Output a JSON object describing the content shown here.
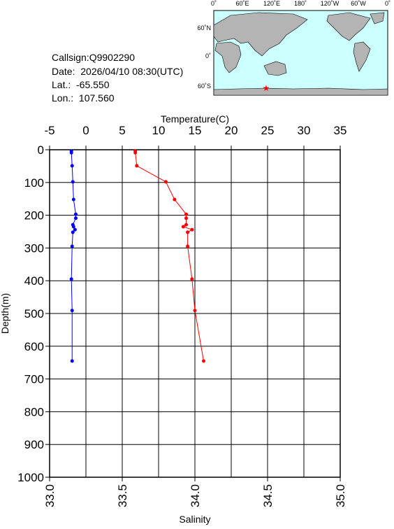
{
  "header": {
    "lines": [
      "Callsign:Q9902290",
      "Date:  2026/04/10 08:30(UTC)",
      "Lat.:  -65.550",
      "Lon.:  107.560"
    ]
  },
  "map": {
    "lon_labels": [
      "0˚",
      "60˚E",
      "120˚E",
      "180˚",
      "120˚W",
      "60˚W",
      "0˚"
    ],
    "lat_labels": [
      "60˚N",
      "0˚",
      "60˚S"
    ]
  },
  "chart_data": {
    "type": "profile",
    "x_label": "Salinity",
    "x2_label": "Temperature(C)",
    "y_label": "Depth(m)",
    "xlim": [
      33,
      35
    ],
    "xticks": [
      {
        "value": 33,
        "label": "33.0"
      },
      {
        "value": 33.5,
        "label": "33.5"
      },
      {
        "value": 34,
        "label": "34.0"
      },
      {
        "value": 34.5,
        "label": "34.5"
      },
      {
        "value": 35,
        "label": "35.0"
      }
    ],
    "x2lim": [
      -5,
      35
    ],
    "x2ticks": [
      -5,
      0,
      5,
      10,
      15,
      20,
      25,
      30,
      35
    ],
    "ylim": [
      0,
      1000
    ],
    "yticks": [
      0,
      100,
      200,
      300,
      400,
      500,
      600,
      700,
      800,
      900,
      1000
    ],
    "y_inverted": true,
    "grid": true,
    "depth": [
      4,
      9,
      49,
      98,
      152,
      197,
      209,
      229,
      235,
      244,
      252,
      295,
      395,
      491,
      645
    ],
    "series": [
      {
        "color": "#0000ff",
        "axis": "x2",
        "values": [
          -2.0,
          -2.0,
          -1.9,
          -1.8,
          -1.7,
          -1.4,
          -1.4,
          -1.8,
          -1.7,
          -1.5,
          -1.8,
          -1.9,
          -2.0,
          -1.9,
          -1.9
        ]
      },
      {
        "color": "#ff0000",
        "axis": "x",
        "values": [
          33.59,
          33.59,
          33.6,
          33.8,
          33.86,
          33.94,
          33.94,
          33.94,
          33.92,
          33.98,
          33.95,
          33.95,
          33.98,
          34.0,
          34.06
        ]
      }
    ]
  }
}
